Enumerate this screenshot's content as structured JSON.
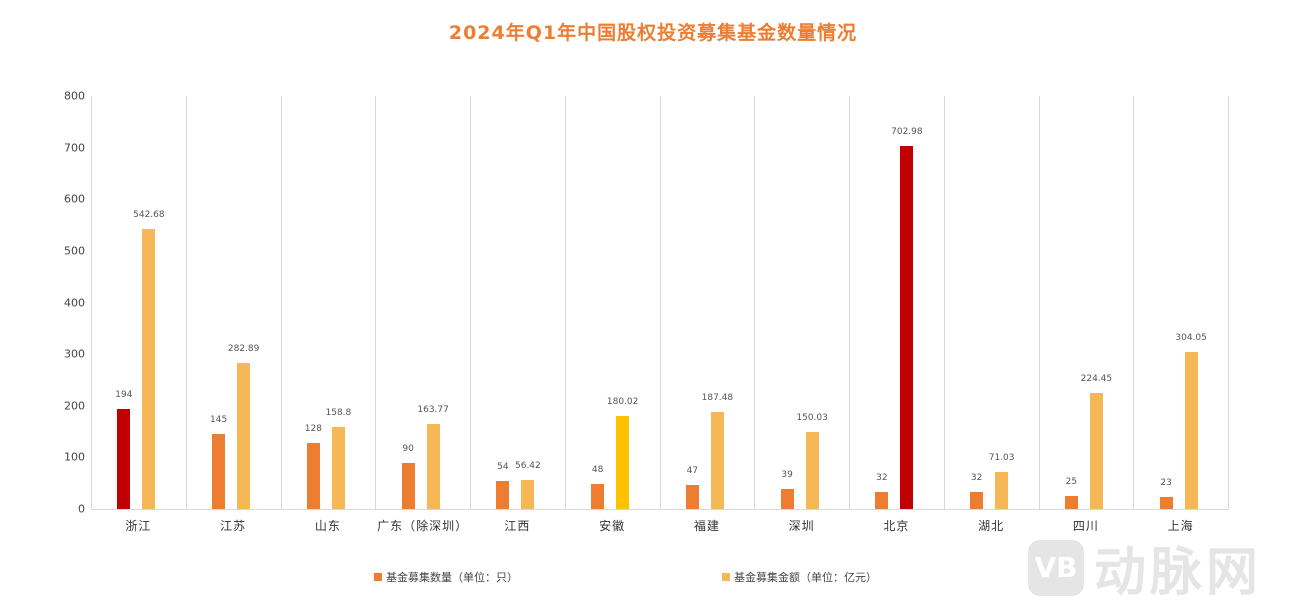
{
  "title": "2024年Q1年中国股权投资募集基金数量情况",
  "chart_data": {
    "type": "bar",
    "title": "2024年Q1年中国股权投资募集基金数量情况",
    "xlabel": "",
    "ylabel": "",
    "ylim": [
      0,
      800
    ],
    "yticks": [
      0,
      100,
      200,
      300,
      400,
      500,
      600,
      700,
      800
    ],
    "grid": "vertical category separators",
    "legend_position": "bottom",
    "categories": [
      "浙江",
      "江苏",
      "山东",
      "广东（除深圳）",
      "江西",
      "安徽",
      "福建",
      "深圳",
      "北京",
      "湖北",
      "四川",
      "上海"
    ],
    "series": [
      {
        "name": "基金募集数量（单位：只）",
        "color": "#ED7D31",
        "values": [
          194,
          145,
          128,
          90,
          54,
          48,
          47,
          39,
          32,
          32,
          25,
          23
        ],
        "labels": [
          "194",
          "145",
          "128",
          "90",
          "54",
          "48",
          "47",
          "39",
          "32",
          "32",
          "25",
          "23"
        ]
      },
      {
        "name": "基金募集金额（单位：亿元）",
        "color": "#F6B756",
        "values": [
          542.68,
          282.89,
          158.8,
          163.77,
          56.42,
          180.02,
          187.48,
          150.03,
          702.98,
          71.03,
          224.45,
          304.05
        ],
        "labels": [
          "542.68",
          "282.89",
          "158.8",
          "163.77",
          "56.42",
          "180.02",
          "187.48",
          "150.03",
          "702.98",
          "71.03",
          "224.45",
          "304.05"
        ]
      }
    ],
    "highlights": [
      {
        "series": 0,
        "category": "浙江",
        "color": "#C00000"
      },
      {
        "series": 1,
        "category": "北京",
        "color": "#C00000"
      },
      {
        "series": 1,
        "category": "安徽",
        "color": "#FFC000"
      }
    ]
  },
  "legend": {
    "items": [
      {
        "label": "基金募集数量（单位：只）",
        "color": "#ED7D31"
      },
      {
        "label": "基金募集金额（单位：亿元）",
        "color": "#F6B756"
      }
    ]
  },
  "watermark": {
    "logo": "VB",
    "text": "动脉网"
  }
}
